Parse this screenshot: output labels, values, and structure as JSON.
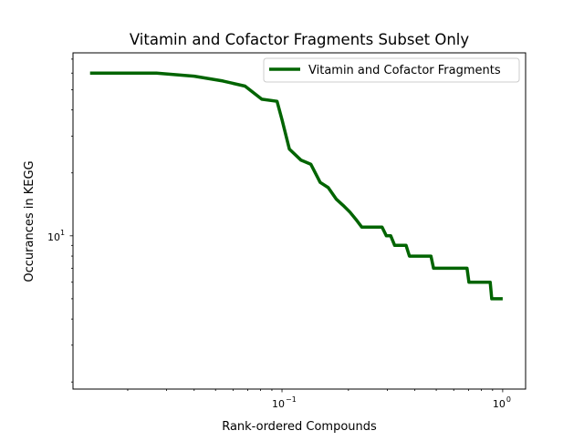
{
  "chart_data": {
    "type": "line",
    "title": "Vitamin and Cofactor Fragments Subset Only",
    "xlabel": "Rank-ordered Compounds",
    "ylabel": "Occurances in KEGG",
    "xscale": "log",
    "yscale": "log",
    "xlim": [
      0.0113,
      1.27
    ],
    "ylim": [
      1.85,
      75
    ],
    "x_major_ticks": [
      {
        "value": 0.1,
        "label": "10",
        "exp": "−1"
      },
      {
        "value": 1,
        "label": "10",
        "exp": "0"
      }
    ],
    "y_major_ticks": [
      {
        "value": 10,
        "label": "10",
        "exp": "1"
      }
    ],
    "legend": {
      "position": "top-right"
    },
    "grid": false,
    "series": [
      {
        "name": "Vitamin and Cofactor Fragments",
        "color": "#006400",
        "x": [
          0.0135,
          0.027,
          0.04,
          0.054,
          0.068,
          0.081,
          0.095,
          0.1,
          0.108,
          0.122,
          0.135,
          0.149,
          0.162,
          0.176,
          0.189,
          0.203,
          0.216,
          0.23,
          0.243,
          0.257,
          0.27,
          0.284,
          0.297,
          0.311,
          0.324,
          0.338,
          0.351,
          0.365,
          0.378,
          0.392,
          0.405,
          0.419,
          0.432,
          0.446,
          0.459,
          0.473,
          0.486,
          0.5,
          0.514,
          0.527,
          0.541,
          0.554,
          0.568,
          0.581,
          0.595,
          0.608,
          0.622,
          0.635,
          0.649,
          0.662,
          0.676,
          0.689,
          0.703,
          0.716,
          0.73,
          0.743,
          0.757,
          0.77,
          0.784,
          0.797,
          0.811,
          0.824,
          0.838,
          0.851,
          0.865,
          0.878,
          0.892,
          0.905,
          0.919,
          0.932,
          0.946,
          0.959,
          0.973,
          0.986,
          1.0
        ],
        "y": [
          60,
          60,
          58,
          55,
          52,
          45,
          44,
          36,
          26,
          23,
          22,
          18,
          17,
          15,
          14,
          13,
          12,
          11,
          11,
          11,
          11,
          11,
          10,
          10,
          9,
          9,
          9,
          9,
          8,
          8,
          8,
          8,
          8,
          8,
          8,
          8,
          7,
          7,
          7,
          7,
          7,
          7,
          7,
          7,
          7,
          7,
          7,
          7,
          7,
          7,
          7,
          7,
          6,
          6,
          6,
          6,
          6,
          6,
          6,
          6,
          6,
          6,
          6,
          6,
          6,
          6,
          5,
          5,
          5,
          5,
          5,
          5,
          5,
          5,
          5
        ]
      }
    ]
  }
}
